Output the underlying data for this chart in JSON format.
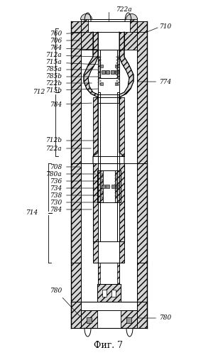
{
  "title": "Фиг. 7",
  "labels": {
    "722a_top": "722a",
    "710": "710",
    "760": "760",
    "706": "706",
    "764": "764",
    "712a": "712a",
    "715a": "715a",
    "785a": "785a",
    "785b": "785b",
    "722b": "722b",
    "715b": "715b",
    "784_1": "784",
    "774": "774",
    "712": "712",
    "712b": "712b",
    "722a_mid": "722a",
    "714": "714",
    "708": "708",
    "780a": "780a",
    "736": "736",
    "734": "734",
    "738": "738",
    "730": "730",
    "784_2": "784",
    "780": "780",
    "780_r": "780"
  },
  "bg_color": "#ffffff",
  "line_color": "#000000"
}
